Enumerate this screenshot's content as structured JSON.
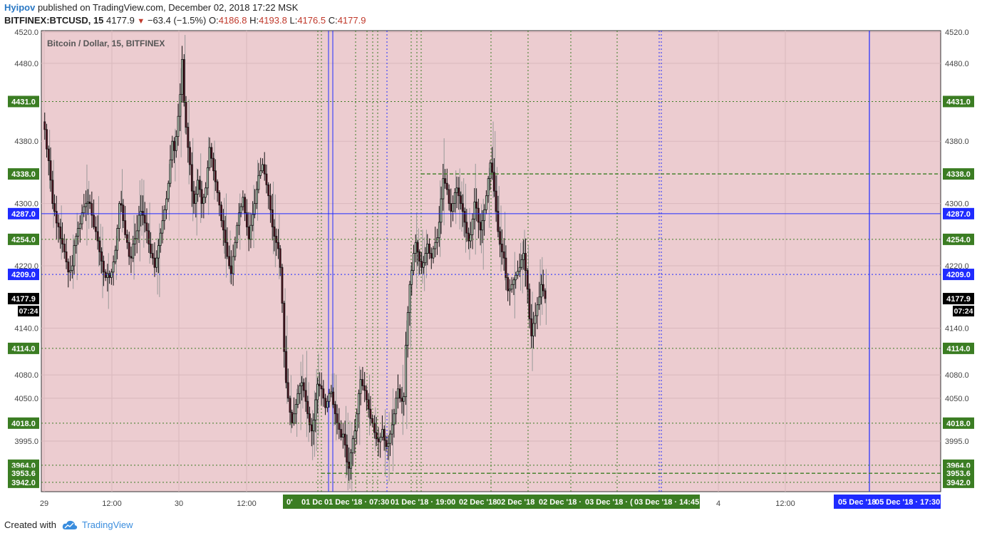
{
  "header": {
    "user": "Hyipov",
    "published": " published on TradingView.com, December 02, 2018 17:22 MSK",
    "symbol": "BITFINEX:BTCUSD, 15",
    "last": "4177.9",
    "change": "−63.4 (−1.5%)",
    "o_label": "O:",
    "o_value": "4186.8",
    "h_label": "H:",
    "h_value": "4193.8",
    "l_label": "L:",
    "l_value": "4176.5",
    "c_label": "C:",
    "c_value": "4177.9"
  },
  "footer": {
    "created": "Created with",
    "brand": "TradingView"
  },
  "colors": {
    "background": "#ecccd0",
    "green_level": "#3b7d23",
    "blue_level": "#1f2bff",
    "up_candle": "#cfe8d2",
    "down_candle": "#5a1020",
    "wick": "#111111",
    "ghost_wick": "#999999",
    "price_label": "#000000"
  },
  "chart_data": {
    "type": "candlestick",
    "title": "Bitcoin / Dollar, 15, BITFINEX",
    "ylim": [
      3930,
      4522
    ],
    "y_ticks": [
      3995.0,
      4050.0,
      4080.0,
      4140.0,
      4220.0,
      4300.0,
      4380.0,
      4480.0,
      4520.0
    ],
    "x_ticks": [
      "29",
      "12:00",
      "30",
      "12:00",
      "4",
      "12:00"
    ],
    "current_price": "4177.9",
    "countdown": "07:24",
    "horizontal_levels": [
      {
        "label": "4431.0",
        "value": 4431.0,
        "color": "green",
        "style": "dotted"
      },
      {
        "label": "4338.0",
        "value": 4338.0,
        "color": "green",
        "style": "dashed"
      },
      {
        "label": "4287.0",
        "value": 4287.0,
        "color": "blue",
        "style": "solid"
      },
      {
        "label": "4254.0",
        "value": 4254.0,
        "color": "green",
        "style": "dotted"
      },
      {
        "label": "4209.0",
        "value": 4209.0,
        "color": "blue",
        "style": "dotted"
      },
      {
        "label": "4114.0",
        "value": 4114.0,
        "color": "green",
        "style": "dotted"
      },
      {
        "label": "4018.0",
        "value": 4018.0,
        "color": "green",
        "style": "dotted"
      },
      {
        "label": "3964.0",
        "value": 3964.0,
        "color": "green",
        "style": "dotted"
      },
      {
        "label": "3953.6",
        "value": 3953.6,
        "color": "green",
        "style": "dashed"
      },
      {
        "label": "3942.0",
        "value": 3942.0,
        "color": "green",
        "style": "dotted"
      }
    ],
    "vertical_time_labels": [
      {
        "label": "0'",
        "color": "green"
      },
      {
        "label": "01 Dc",
        "color": "green"
      },
      {
        "label": "01 Dec '18 · 07:30",
        "color": "green"
      },
      {
        "label": "01 Dec '18 · 19:00",
        "color": "green"
      },
      {
        "label": "02 Dec '18",
        "color": "green"
      },
      {
        "label": "02 Dec '18",
        "color": "green"
      },
      {
        "label": "02 Dec '18 ·",
        "color": "green"
      },
      {
        "label": "03 Dec '18 · (",
        "color": "green"
      },
      {
        "label": "03 Dec '18 · 14:45",
        "color": "green"
      },
      {
        "label": "05 Dec '18",
        "color": "blue"
      },
      {
        "label": "05 Dec '18 · 17:30",
        "color": "blue"
      }
    ],
    "series": [
      {
        "name": "BTCUSD",
        "close_path": [
          4405,
          4395,
          4370,
          4355,
          4330,
          4300,
          4290,
          4275,
          4270,
          4255,
          4248,
          4238,
          4225,
          4212,
          4214,
          4220,
          4246,
          4258,
          4268,
          4274,
          4288,
          4296,
          4300,
          4302,
          4300,
          4285,
          4270,
          4264,
          4252,
          4238,
          4226,
          4212,
          4205,
          4210,
          4205,
          4212,
          4225,
          4240,
          4268,
          4300,
          4298,
          4278,
          4260,
          4250,
          4232,
          4230,
          4248,
          4255,
          4265,
          4285,
          4290,
          4285,
          4275,
          4265,
          4248,
          4236,
          4230,
          4218,
          4230,
          4246,
          4262,
          4278,
          4292,
          4306,
          4326,
          4356,
          4380,
          4368,
          4386,
          4412,
          4440,
          4485,
          4430,
          4398,
          4372,
          4350,
          4316,
          4300,
          4312,
          4330,
          4318,
          4300,
          4308,
          4320,
          4346,
          4372,
          4358,
          4342,
          4328,
          4314,
          4298,
          4278,
          4266,
          4250,
          4232,
          4220,
          4210,
          4232,
          4250,
          4272,
          4288,
          4296,
          4308,
          4288,
          4270,
          4254,
          4272,
          4286,
          4300,
          4318,
          4336,
          4342,
          4350,
          4338,
          4324,
          4310,
          4292,
          4270,
          4258,
          4250,
          4242,
          4218,
          4172,
          4110,
          4070,
          4050,
          4032,
          4018,
          4030,
          4042,
          4056,
          4066,
          4070,
          4060,
          4046,
          4030,
          4016,
          4008,
          4022,
          4048,
          4068,
          4066,
          4062,
          4050,
          4038,
          4046,
          4056,
          4058,
          4042,
          4030,
          4018,
          4010,
          4000,
          4004,
          3990,
          3968,
          3960,
          3980,
          3998,
          4008,
          4030,
          4056,
          4074,
          4066,
          4060,
          4048,
          4036,
          4024,
          4018,
          4006,
          3998,
          3994,
          4000,
          4010,
          3996,
          3988,
          3992,
          4004,
          4016,
          4030,
          4050,
          4062,
          4050,
          4046,
          4052,
          4118,
          4160,
          4196,
          4214,
          4236,
          4250,
          4238,
          4226,
          4218,
          4224,
          4236,
          4248,
          4236,
          4230,
          4242,
          4250,
          4256,
          4276,
          4306,
          4332,
          4326,
          4318,
          4300,
          4290,
          4300,
          4314,
          4320,
          4310,
          4300,
          4290,
          4276,
          4262,
          4252,
          4260,
          4280,
          4302,
          4294,
          4276,
          4266,
          4278,
          4292,
          4310,
          4332,
          4352,
          4340,
          4316,
          4290,
          4264,
          4248,
          4238,
          4230,
          4205,
          4188,
          4190,
          4196,
          4202,
          4208,
          4213,
          4218,
          4228,
          4236,
          4214,
          4190,
          4152,
          4130,
          4146,
          4156,
          4170,
          4180,
          4196,
          4188,
          4178
        ]
      }
    ]
  }
}
